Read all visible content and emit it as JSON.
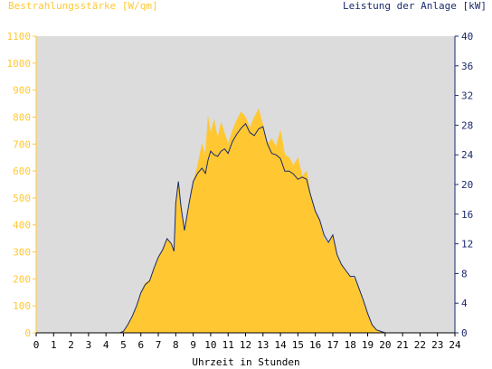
{
  "chart_data": {
    "type": "area",
    "left_axis_title": "Bestrahlungsstärke [W/qm]",
    "right_axis_title": "Leistung der Anlage [kW]",
    "xlabel": "Uhrzeit in Stunden",
    "x_ticks": [
      "0",
      "1",
      "2",
      "3",
      "4",
      "5",
      "6",
      "7",
      "8",
      "9",
      "10",
      "11",
      "12",
      "13",
      "14",
      "15",
      "16",
      "17",
      "18",
      "19",
      "20",
      "21",
      "22",
      "23",
      "24"
    ],
    "y_left_ticks": [
      "0",
      "100",
      "200",
      "300",
      "400",
      "500",
      "600",
      "700",
      "800",
      "900",
      "1000",
      "1100"
    ],
    "y_right_ticks": [
      "0",
      "4",
      "8",
      "12",
      "16",
      "20",
      "24",
      "28",
      "32",
      "36",
      "40"
    ],
    "xlim": [
      0,
      24
    ],
    "ylim_left": [
      0,
      1100
    ],
    "ylim_right": [
      0,
      40
    ],
    "grid": false,
    "series": [
      {
        "name": "Bestrahlungsstärke [W/qm]",
        "axis": "left",
        "style": "filled-area",
        "color": "#FFC832",
        "x": [
          0,
          4.8,
          5,
          5.25,
          5.5,
          5.75,
          6,
          6.25,
          6.5,
          6.75,
          7,
          7.25,
          7.5,
          7.75,
          7.9,
          8,
          8.15,
          8.3,
          8.5,
          8.75,
          9,
          9.25,
          9.5,
          9.7,
          9.85,
          10,
          10.2,
          10.4,
          10.6,
          10.8,
          11,
          11.25,
          11.5,
          11.75,
          12,
          12.25,
          12.5,
          12.75,
          13,
          13.25,
          13.5,
          13.75,
          14,
          14.25,
          14.5,
          14.75,
          15,
          15.25,
          15.5,
          15.7,
          15.85,
          16,
          16.25,
          16.5,
          16.75,
          17,
          17.25,
          17.5,
          17.75,
          18,
          18.25,
          18.5,
          18.75,
          19,
          19.25,
          19.5,
          19.75,
          20,
          20.25,
          20.5,
          24
        ],
        "y": [
          0,
          0,
          5,
          30,
          60,
          100,
          150,
          185,
          195,
          240,
          280,
          310,
          350,
          330,
          300,
          460,
          560,
          470,
          380,
          470,
          560,
          620,
          700,
          660,
          800,
          740,
          790,
          720,
          780,
          740,
          700,
          750,
          790,
          820,
          800,
          760,
          800,
          830,
          770,
          700,
          720,
          690,
          750,
          660,
          650,
          620,
          650,
          580,
          600,
          520,
          480,
          450,
          410,
          350,
          330,
          360,
          280,
          250,
          230,
          210,
          200,
          160,
          120,
          70,
          30,
          12,
          5,
          0,
          0,
          0,
          0
        ]
      },
      {
        "name": "Leistung der Anlage [kW]",
        "axis": "right",
        "style": "line",
        "color": "#1A2A6C",
        "x": [
          0,
          4.8,
          5,
          5.25,
          5.5,
          5.75,
          6,
          6.25,
          6.5,
          6.75,
          7,
          7.25,
          7.5,
          7.75,
          7.9,
          8,
          8.15,
          8.3,
          8.5,
          8.75,
          9,
          9.25,
          9.5,
          9.7,
          9.85,
          10,
          10.2,
          10.4,
          10.6,
          10.8,
          11,
          11.25,
          11.5,
          11.75,
          12,
          12.25,
          12.5,
          12.75,
          13,
          13.25,
          13.5,
          13.75,
          14,
          14.25,
          14.5,
          14.75,
          15,
          15.25,
          15.5,
          15.7,
          15.85,
          16,
          16.25,
          16.5,
          16.75,
          17,
          17.25,
          17.5,
          17.75,
          18,
          18.25,
          18.5,
          18.75,
          19,
          19.25,
          19.5,
          19.75,
          20,
          20.25,
          20.5,
          24
        ],
        "y": [
          0,
          0,
          0.2,
          1.1,
          2.2,
          3.6,
          5.4,
          6.5,
          7,
          8.7,
          10.2,
          11.2,
          12.7,
          12,
          11,
          17.5,
          20.4,
          17,
          13.8,
          17.3,
          20.4,
          21.5,
          22.2,
          21.5,
          23.3,
          24.5,
          24,
          23.8,
          24.5,
          24.8,
          24.2,
          25.8,
          26.8,
          27.6,
          28.2,
          27,
          26.6,
          27.5,
          27.8,
          25.5,
          24.2,
          24,
          23.5,
          21.8,
          21.8,
          21.4,
          20.7,
          21,
          20.7,
          18.8,
          17.6,
          16.4,
          15.2,
          13.2,
          12.2,
          13.2,
          10.5,
          9.2,
          8.4,
          7.6,
          7.6,
          6,
          4.4,
          2.6,
          1.1,
          0.4,
          0.2,
          0,
          0,
          0,
          0
        ]
      }
    ]
  },
  "colors": {
    "left_axis": "#FFC832",
    "right_axis": "#1A2A6C",
    "plot_background": "#DCDCDC",
    "area_fill": "#FFC832",
    "line": "#1A2A6C",
    "x_axis_text": "#000000"
  }
}
